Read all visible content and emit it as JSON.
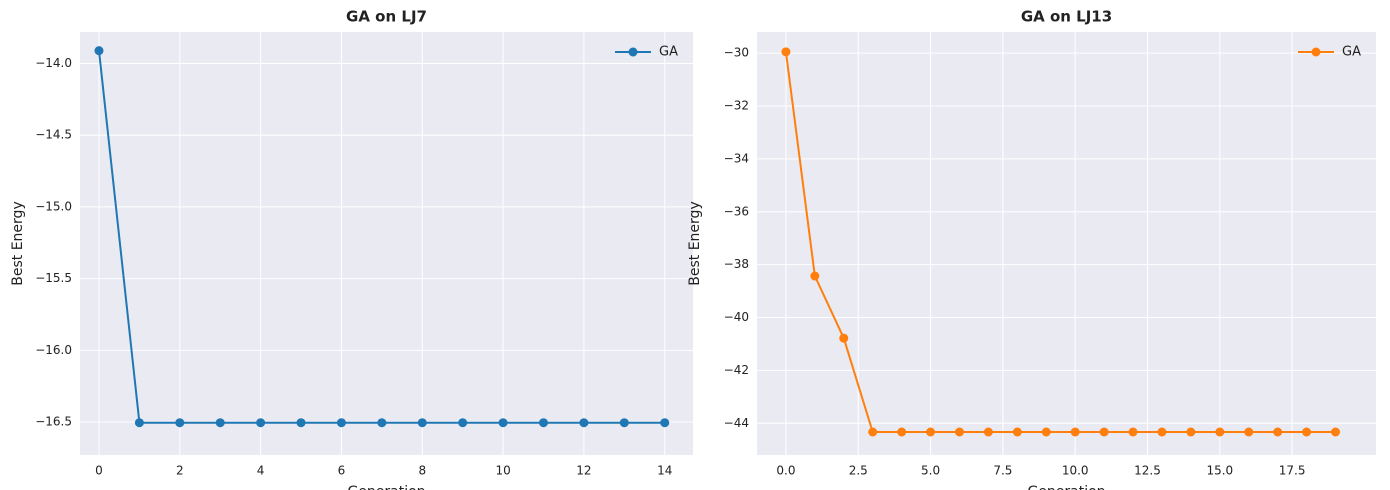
{
  "chart_data": [
    {
      "type": "line",
      "title": "GA on LJ7",
      "x_label": "Generation",
      "y_label": "Best Energy",
      "x": [
        0,
        1,
        2,
        3,
        4,
        5,
        6,
        7,
        8,
        9,
        10,
        11,
        12,
        13,
        14
      ],
      "series": [
        {
          "name": "GA",
          "color": "#1f77b4",
          "values": [
            -13.91,
            -16.505,
            -16.505,
            -16.505,
            -16.505,
            -16.505,
            -16.505,
            -16.505,
            -16.505,
            -16.505,
            -16.505,
            -16.505,
            -16.505,
            -16.505,
            -16.505
          ]
        }
      ],
      "xlim": [
        -0.47,
        14.7
      ],
      "ylim": [
        -16.73,
        -13.78
      ],
      "xticks": [
        0,
        2,
        4,
        6,
        8,
        10,
        12,
        14
      ],
      "yticks": [
        {
          "value": -16.5,
          "label": "−16.5"
        },
        {
          "value": -16,
          "label": "−16.0"
        },
        {
          "value": -15.5,
          "label": "−15.5"
        },
        {
          "value": -15,
          "label": "−15.0"
        },
        {
          "value": -14.5,
          "label": "−14.5"
        },
        {
          "value": -14,
          "label": "−14.0"
        }
      ],
      "grid": true,
      "legend": "upper right"
    },
    {
      "type": "line",
      "title": "GA on LJ13",
      "x_label": "Generation",
      "y_label": "Best Energy",
      "x": [
        0,
        1,
        2,
        3,
        4,
        5,
        6,
        7,
        8,
        9,
        10,
        11,
        12,
        13,
        14,
        15,
        16,
        17,
        18,
        19
      ],
      "series": [
        {
          "name": "GA",
          "color": "#ff7f0e",
          "values": [
            -29.95,
            -38.43,
            -40.78,
            -44.33,
            -44.33,
            -44.33,
            -44.33,
            -44.33,
            -44.33,
            -44.33,
            -44.33,
            -44.33,
            -44.33,
            -44.33,
            -44.33,
            -44.33,
            -44.33,
            -44.33,
            -44.33,
            -44.33
          ]
        }
      ],
      "xlim": [
        -1,
        20.4
      ],
      "ylim": [
        -45.2,
        -29.2
      ],
      "xticks": [
        {
          "value": 0,
          "label": "0.0"
        },
        2.5,
        {
          "value": 5,
          "label": "5.0"
        },
        7.5,
        {
          "value": 10,
          "label": "10.0"
        },
        12.5,
        {
          "value": 15,
          "label": "15.0"
        },
        17.5
      ],
      "yticks": [
        {
          "value": -44,
          "label": "−44"
        },
        {
          "value": -42,
          "label": "−42"
        },
        {
          "value": -40,
          "label": "−40"
        },
        {
          "value": -38,
          "label": "−38"
        },
        {
          "value": -36,
          "label": "−36"
        },
        {
          "value": -34,
          "label": "−34"
        },
        {
          "value": -32,
          "label": "−32"
        },
        {
          "value": -30,
          "label": "−30"
        }
      ],
      "grid": true,
      "legend": "upper right"
    }
  ]
}
